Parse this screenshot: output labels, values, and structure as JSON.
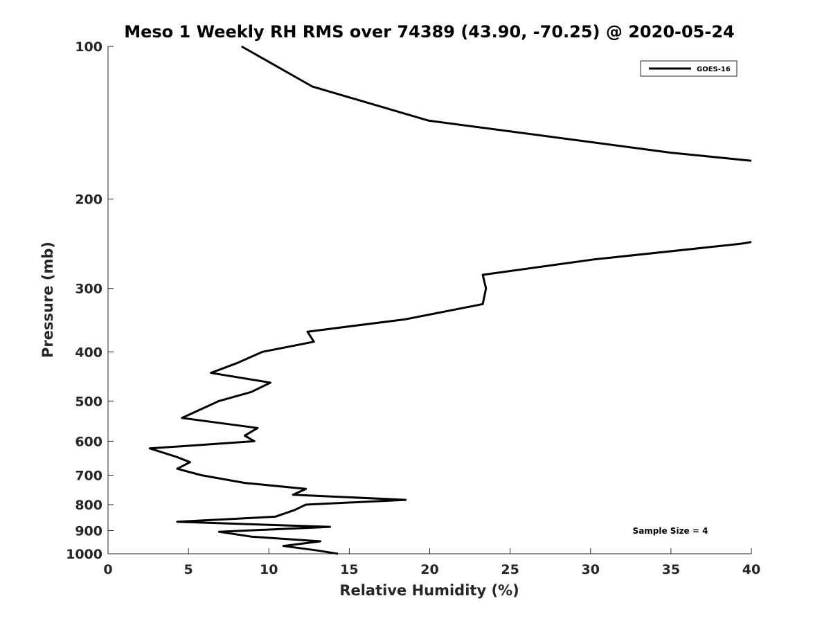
{
  "chart_data": {
    "type": "line",
    "title": "Meso 1 Weekly RH RMS over 74389 (43.90, -70.25) @ 2020-05-24",
    "xlabel": "Relative Humidity (%)",
    "ylabel": "Pressure (mb)",
    "xlim": [
      0,
      40
    ],
    "ylim": [
      100,
      1000
    ],
    "y_scale": "log",
    "y_reversed": true,
    "grid": false,
    "legend_position": "top-right",
    "x_ticks": [
      0,
      5,
      10,
      15,
      20,
      25,
      30,
      35,
      40
    ],
    "y_ticks": [
      100,
      200,
      300,
      400,
      500,
      600,
      700,
      800,
      900,
      1000
    ],
    "annotation": "Sample Size = 4",
    "series": [
      {
        "name": "GOES-16",
        "color": "#000000",
        "segments": [
          [
            {
              "x": 8.3,
              "y": 100
            },
            {
              "x": 12.7,
              "y": 120
            },
            {
              "x": 19.9,
              "y": 140
            },
            {
              "x": 35.0,
              "y": 162
            },
            {
              "x": 40.0,
              "y": 168
            }
          ],
          [
            {
              "x": 40.0,
              "y": 243
            },
            {
              "x": 39.3,
              "y": 245
            },
            {
              "x": 30.2,
              "y": 263
            },
            {
              "x": 23.3,
              "y": 282
            },
            {
              "x": 23.5,
              "y": 300
            },
            {
              "x": 23.3,
              "y": 322
            },
            {
              "x": 18.5,
              "y": 345
            },
            {
              "x": 12.4,
              "y": 365
            },
            {
              "x": 12.8,
              "y": 382
            },
            {
              "x": 9.6,
              "y": 400
            },
            {
              "x": 8.1,
              "y": 420
            },
            {
              "x": 6.4,
              "y": 440
            },
            {
              "x": 10.1,
              "y": 460
            },
            {
              "x": 8.9,
              "y": 480
            },
            {
              "x": 6.9,
              "y": 500
            },
            {
              "x": 4.6,
              "y": 540
            },
            {
              "x": 9.3,
              "y": 565
            },
            {
              "x": 8.5,
              "y": 585
            },
            {
              "x": 9.1,
              "y": 600
            },
            {
              "x": 2.6,
              "y": 620
            },
            {
              "x": 4.3,
              "y": 645
            },
            {
              "x": 5.1,
              "y": 660
            },
            {
              "x": 4.3,
              "y": 680
            },
            {
              "x": 5.8,
              "y": 700
            },
            {
              "x": 8.5,
              "y": 725
            },
            {
              "x": 12.3,
              "y": 745
            },
            {
              "x": 11.5,
              "y": 765
            },
            {
              "x": 18.5,
              "y": 783
            },
            {
              "x": 12.3,
              "y": 800
            },
            {
              "x": 11.6,
              "y": 820
            },
            {
              "x": 10.4,
              "y": 845
            },
            {
              "x": 4.3,
              "y": 865
            },
            {
              "x": 13.8,
              "y": 885
            },
            {
              "x": 6.9,
              "y": 905
            },
            {
              "x": 8.9,
              "y": 925
            },
            {
              "x": 13.2,
              "y": 945
            },
            {
              "x": 10.9,
              "y": 965
            },
            {
              "x": 13.0,
              "y": 985
            },
            {
              "x": 14.3,
              "y": 1000
            }
          ]
        ]
      }
    ]
  }
}
